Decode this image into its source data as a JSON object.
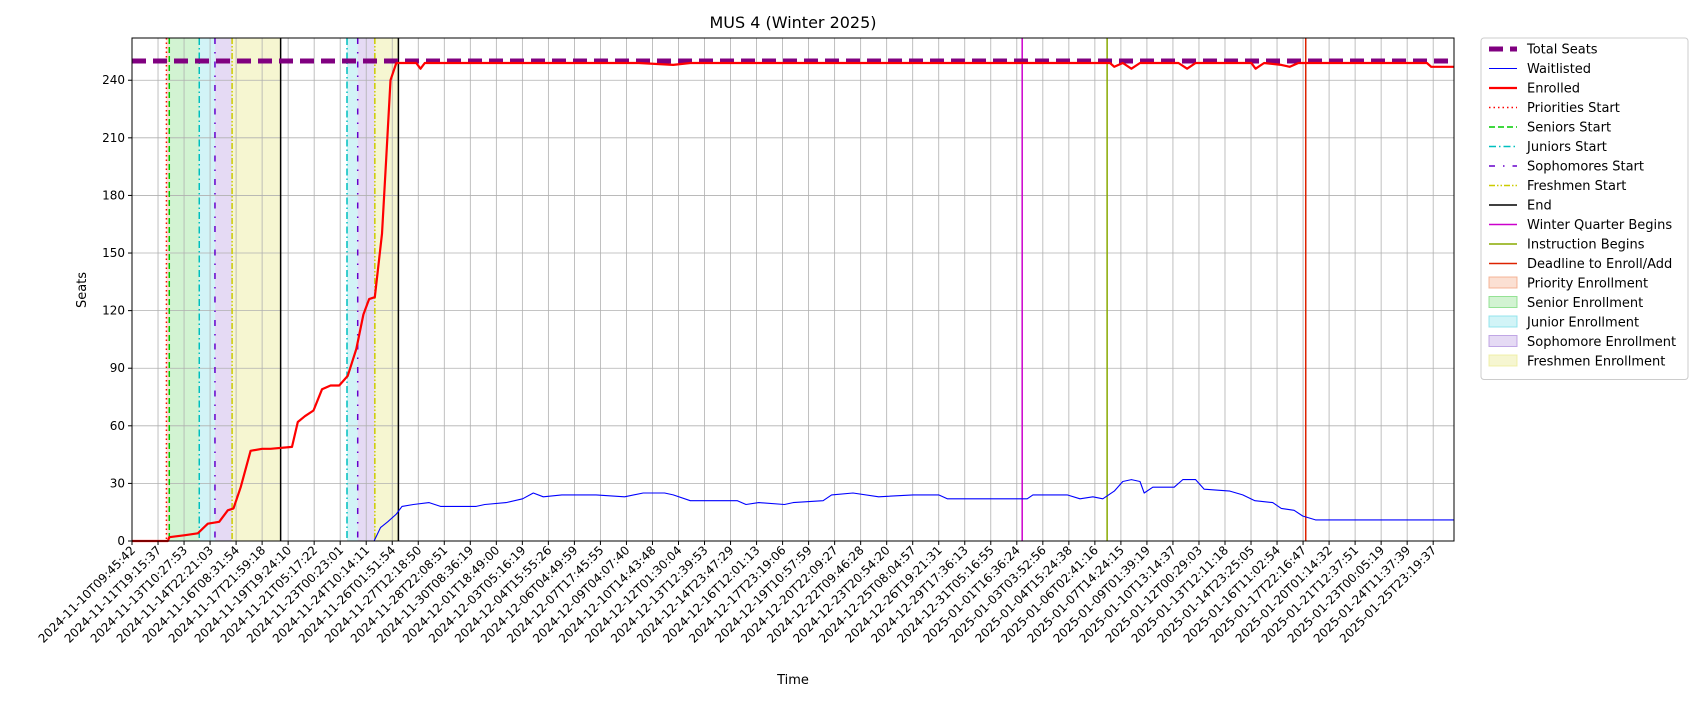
{
  "chart_data": {
    "type": "line",
    "title": "MUS 4 (Winter 2025)",
    "xlabel": "Time",
    "ylabel": "Seats",
    "x_range": [
      "2024-11-10T09:45:42",
      "2025-01-26T14:00:00"
    ],
    "ylim": [
      0,
      262
    ],
    "yticks": [
      0,
      30,
      60,
      90,
      120,
      150,
      180,
      210,
      240
    ],
    "grid": true,
    "legend_position": "outside-right",
    "xtick_labels": [
      "2024-11-10T09:45:42",
      "2024-11-11T19:15:37",
      "2024-11-13T10:27:53",
      "2024-11-14T22:21:03",
      "2024-11-16T08:31:54",
      "2024-11-17T21:59:18",
      "2024-11-19T19:24:10",
      "2024-11-21T05:17:22",
      "2024-11-23T00:23:01",
      "2024-11-24T10:14:11",
      "2024-11-26T01:51:54",
      "2024-11-27T12:18:50",
      "2024-11-28T22:08:51",
      "2024-11-30T08:36:19",
      "2024-12-01T18:49:00",
      "2024-12-03T05:16:19",
      "2024-12-04T15:55:26",
      "2024-12-06T04:49:59",
      "2024-12-07T17:45:55",
      "2024-12-09T04:07:40",
      "2024-12-10T14:43:48",
      "2024-12-12T01:30:04",
      "2024-12-13T12:39:53",
      "2024-12-14T23:47:29",
      "2024-12-16T12:01:13",
      "2024-12-17T23:19:06",
      "2024-12-19T10:57:59",
      "2024-12-20T22:09:27",
      "2024-12-22T09:46:28",
      "2024-12-23T20:54:20",
      "2024-12-25T08:04:57",
      "2024-12-26T19:21:31",
      "2024-12-29T17:36:13",
      "2024-12-31T05:16:55",
      "2025-01-01T16:36:24",
      "2025-01-03T03:52:56",
      "2025-01-04T15:24:38",
      "2025-01-06T02:41:16",
      "2025-01-07T14:24:15",
      "2025-01-09T01:39:19",
      "2025-01-10T13:14:37",
      "2025-01-12T00:29:03",
      "2025-01-13T12:11:18",
      "2025-01-14T23:25:05",
      "2025-01-16T11:02:54",
      "2025-01-17T22:16:47",
      "2025-01-20T01:14:32",
      "2025-01-21T12:37:51",
      "2025-01-23T00:05:19",
      "2025-01-24T11:37:39",
      "2025-01-25T23:19:37"
    ],
    "series": [
      {
        "name": "Total Seats",
        "color": "#800080",
        "style": "dashed-thick",
        "points": [
          [
            "2024-11-10T09:45:42",
            250
          ],
          [
            "2025-01-26T14:00:00",
            250
          ]
        ]
      },
      {
        "name": "Waitlisted",
        "color": "#0000ff",
        "style": "solid-thin",
        "points": [
          [
            "2024-11-10T09:45:42",
            0
          ],
          [
            "2024-11-24T13:00:00",
            0
          ],
          [
            "2024-11-24T22:00:00",
            7
          ],
          [
            "2024-11-25T08:00:00",
            10
          ],
          [
            "2024-11-25T20:00:00",
            14
          ],
          [
            "2024-11-26T04:00:00",
            18
          ],
          [
            "2024-11-26T20:00:00",
            19
          ],
          [
            "2024-11-27T18:00:00",
            20
          ],
          [
            "2024-11-28T10:00:00",
            18
          ],
          [
            "2024-11-30T12:00:00",
            18
          ],
          [
            "2024-12-01T00:00:00",
            19
          ],
          [
            "2024-12-02T06:00:00",
            20
          ],
          [
            "2024-12-03T05:00:00",
            22
          ],
          [
            "2024-12-03T20:00:00",
            25
          ],
          [
            "2024-12-04T10:00:00",
            23
          ],
          [
            "2024-12-05T12:00:00",
            24
          ],
          [
            "2024-12-07T12:00:00",
            24
          ],
          [
            "2024-12-09T04:00:00",
            23
          ],
          [
            "2024-12-10T06:00:00",
            25
          ],
          [
            "2024-12-11T12:00:00",
            25
          ],
          [
            "2024-12-12T00:00:00",
            24
          ],
          [
            "2024-12-13T00:00:00",
            21
          ],
          [
            "2024-12-15T18:00:00",
            21
          ],
          [
            "2024-12-16T06:00:00",
            19
          ],
          [
            "2024-12-17T00:00:00",
            20
          ],
          [
            "2024-12-18T12:00:00",
            19
          ],
          [
            "2024-12-19T00:00:00",
            20
          ],
          [
            "2024-12-20T18:00:00",
            21
          ],
          [
            "2024-12-21T06:00:00",
            24
          ],
          [
            "2024-12-22T12:00:00",
            25
          ],
          [
            "2024-12-24T00:00:00",
            23
          ],
          [
            "2024-12-26T00:00:00",
            24
          ],
          [
            "2024-12-27T12:00:00",
            24
          ],
          [
            "2024-12-28T00:00:00",
            22
          ],
          [
            "2025-01-01T16:00:00",
            22
          ],
          [
            "2025-01-02T00:00:00",
            24
          ],
          [
            "2025-01-04T00:00:00",
            24
          ],
          [
            "2025-01-04T18:00:00",
            22
          ],
          [
            "2025-01-05T12:00:00",
            23
          ],
          [
            "2025-01-06T02:00:00",
            22
          ],
          [
            "2025-01-06T18:00:00",
            26
          ],
          [
            "2025-01-07T06:00:00",
            31
          ],
          [
            "2025-01-07T18:00:00",
            32
          ],
          [
            "2025-01-08T06:00:00",
            31
          ],
          [
            "2025-01-08T12:00:00",
            25
          ],
          [
            "2025-01-09T00:00:00",
            28
          ],
          [
            "2025-01-10T06:00:00",
            28
          ],
          [
            "2025-01-10T18:00:00",
            32
          ],
          [
            "2025-01-11T12:00:00",
            32
          ],
          [
            "2025-01-12T00:00:00",
            27
          ],
          [
            "2025-01-13T12:00:00",
            26
          ],
          [
            "2025-01-14T06:00:00",
            24
          ],
          [
            "2025-01-14T23:00:00",
            21
          ],
          [
            "2025-01-16T00:00:00",
            20
          ],
          [
            "2025-01-16T12:00:00",
            17
          ],
          [
            "2025-01-17T06:00:00",
            16
          ],
          [
            "2025-01-17T18:00:00",
            13
          ],
          [
            "2025-01-18T12:00:00",
            11
          ],
          [
            "2025-01-26T14:00:00",
            11
          ]
        ]
      },
      {
        "name": "Enrolled",
        "color": "#ff0000",
        "style": "solid-thick",
        "points": [
          [
            "2024-11-10T09:45:42",
            0
          ],
          [
            "2024-11-12T12:00:00",
            0
          ],
          [
            "2024-11-12T14:00:00",
            2
          ],
          [
            "2024-11-13T12:00:00",
            3
          ],
          [
            "2024-11-14T06:00:00",
            4
          ],
          [
            "2024-11-14T20:00:00",
            9
          ],
          [
            "2024-11-15T12:00:00",
            10
          ],
          [
            "2024-11-16T00:00:00",
            16
          ],
          [
            "2024-11-16T08:00:00",
            17
          ],
          [
            "2024-11-16T18:00:00",
            28
          ],
          [
            "2024-11-17T08:00:00",
            47
          ],
          [
            "2024-11-18T00:00:00",
            48
          ],
          [
            "2024-11-18T12:00:00",
            48
          ],
          [
            "2024-11-19T18:00:00",
            49
          ],
          [
            "2024-11-20T02:00:00",
            62
          ],
          [
            "2024-11-20T12:00:00",
            65
          ],
          [
            "2024-11-21T00:00:00",
            68
          ],
          [
            "2024-11-21T12:00:00",
            79
          ],
          [
            "2024-11-22T00:00:00",
            81
          ],
          [
            "2024-11-22T12:00:00",
            81
          ],
          [
            "2024-11-23T00:00:00",
            86
          ],
          [
            "2024-11-23T12:00:00",
            100
          ],
          [
            "2024-11-23T22:00:00",
            118
          ],
          [
            "2024-11-24T06:00:00",
            126
          ],
          [
            "2024-11-24T14:00:00",
            127
          ],
          [
            "2024-11-25T00:00:00",
            160
          ],
          [
            "2024-11-25T06:00:00",
            200
          ],
          [
            "2024-11-25T12:00:00",
            240
          ],
          [
            "2024-11-25T20:00:00",
            249
          ],
          [
            "2024-11-27T00:00:00",
            249
          ],
          [
            "2024-11-27T06:00:00",
            246
          ],
          [
            "2024-11-27T12:00:00",
            249
          ],
          [
            "2024-12-10T00:00:00",
            249
          ],
          [
            "2024-12-12T00:00:00",
            248
          ],
          [
            "2024-12-13T00:00:00",
            249
          ],
          [
            "2025-01-06T12:00:00",
            249
          ],
          [
            "2025-01-06T18:00:00",
            247
          ],
          [
            "2025-01-07T06:00:00",
            249
          ],
          [
            "2025-01-07T18:00:00",
            246
          ],
          [
            "2025-01-08T06:00:00",
            249
          ],
          [
            "2025-01-10T12:00:00",
            249
          ],
          [
            "2025-01-11T00:00:00",
            246
          ],
          [
            "2025-01-11T12:00:00",
            249
          ],
          [
            "2025-01-14T18:00:00",
            249
          ],
          [
            "2025-01-15T00:00:00",
            246
          ],
          [
            "2025-01-15T12:00:00",
            249
          ],
          [
            "2025-01-16T12:00:00",
            248
          ],
          [
            "2025-01-17T00:00:00",
            247
          ],
          [
            "2025-01-17T12:00:00",
            249
          ],
          [
            "2025-01-25T00:00:00",
            249
          ],
          [
            "2025-01-25T06:00:00",
            247
          ],
          [
            "2025-01-26T14:00:00",
            247
          ]
        ]
      }
    ],
    "vlines": [
      {
        "name": "Priorities Start",
        "color": "#ff0000",
        "style": "dotted",
        "times": [
          "2024-11-12T10:00:00"
        ]
      },
      {
        "name": "Seniors Start",
        "color": "#00cc00",
        "style": "dashed",
        "times": [
          "2024-11-12T14:00:00"
        ]
      },
      {
        "name": "Juniors Start",
        "color": "#00bfbf",
        "style": "dashdot",
        "times": [
          "2024-11-14T08:00:00",
          "2024-11-22T23:00:00"
        ]
      },
      {
        "name": "Sophomores Start",
        "color": "#6600cc",
        "style": "loosely-dashdot",
        "times": [
          "2024-11-15T06:00:00",
          "2024-11-23T14:00:00"
        ]
      },
      {
        "name": "Freshmen Start",
        "color": "#cccc00",
        "style": "dashdotdot",
        "times": [
          "2024-11-16T06:00:00",
          "2024-11-24T14:00:00"
        ]
      },
      {
        "name": "End",
        "color": "#000000",
        "style": "solid",
        "times": [
          "2024-11-19T02:00:00",
          "2024-11-25T23:00:00"
        ]
      },
      {
        "name": "Winter Quarter Begins",
        "color": "#cc00cc",
        "style": "solid",
        "times": [
          "2025-01-01T09:00:00"
        ]
      },
      {
        "name": "Instruction Begins",
        "color": "#88aa00",
        "style": "solid",
        "times": [
          "2025-01-06T08:00:00"
        ]
      },
      {
        "name": "Deadline to Enroll/Add",
        "color": "#dd2200",
        "style": "solid",
        "times": [
          "2025-01-17T22:16:47"
        ]
      }
    ],
    "spans": [
      {
        "name": "Priority Enrollment",
        "color": "#f4a582",
        "opacity": 0.35,
        "ranges": [
          [
            "2024-11-12T10:00:00",
            "2024-11-12T14:00:00"
          ]
        ]
      },
      {
        "name": "Senior Enrollment",
        "color": "#7fdc7f",
        "opacity": 0.35,
        "ranges": [
          [
            "2024-11-12T14:00:00",
            "2024-11-14T08:00:00"
          ]
        ]
      },
      {
        "name": "Junior Enrollment",
        "color": "#7fe0e8",
        "opacity": 0.35,
        "ranges": [
          [
            "2024-11-14T08:00:00",
            "2024-11-15T06:00:00"
          ],
          [
            "2024-11-22T23:00:00",
            "2024-11-23T14:00:00"
          ]
        ]
      },
      {
        "name": "Sophomore Enrollment",
        "color": "#b495e0",
        "opacity": 0.35,
        "ranges": [
          [
            "2024-11-15T06:00:00",
            "2024-11-16T06:00:00"
          ],
          [
            "2024-11-23T14:00:00",
            "2024-11-24T14:00:00"
          ]
        ]
      },
      {
        "name": "Freshmen Enrollment",
        "color": "#ecec9a",
        "opacity": 0.45,
        "ranges": [
          [
            "2024-11-16T06:00:00",
            "2024-11-19T02:00:00"
          ],
          [
            "2024-11-24T14:00:00",
            "2024-11-25T23:00:00"
          ]
        ]
      }
    ]
  }
}
